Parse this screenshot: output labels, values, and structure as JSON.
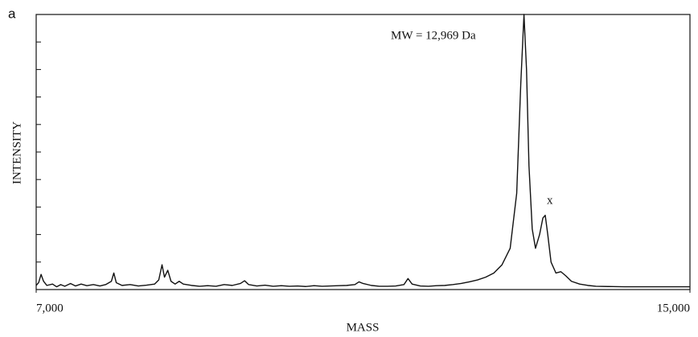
{
  "panel_label": "a",
  "chart_data": {
    "type": "line",
    "annotations": [
      "MW = 12,969 Da",
      "x"
    ],
    "xlabel": "MASS",
    "ylabel": "INTENSITY",
    "x": [
      7000,
      7030,
      7060,
      7090,
      7130,
      7200,
      7250,
      7300,
      7350,
      7420,
      7480,
      7550,
      7620,
      7700,
      7780,
      7850,
      7920,
      7950,
      7980,
      8050,
      8150,
      8250,
      8350,
      8450,
      8500,
      8540,
      8570,
      8610,
      8650,
      8700,
      8750,
      8800,
      8900,
      9000,
      9100,
      9200,
      9300,
      9400,
      9500,
      9550,
      9600,
      9700,
      9800,
      9900,
      10000,
      10100,
      10200,
      10300,
      10400,
      10500,
      10600,
      10700,
      10800,
      10900,
      10950,
      11000,
      11100,
      11200,
      11300,
      11400,
      11500,
      11550,
      11600,
      11700,
      11800,
      11900,
      12000,
      12100,
      12200,
      12300,
      12400,
      12500,
      12600,
      12700,
      12800,
      12880,
      12930,
      12969,
      13000,
      13030,
      13070,
      13110,
      13160,
      13200,
      13229,
      13260,
      13300,
      13360,
      13420,
      13480,
      13550,
      13650,
      13750,
      13850,
      14000,
      14200,
      14400,
      14600,
      14800,
      15000
    ],
    "series": [
      {
        "color": "#111111",
        "values": [
          1.5,
          2.5,
          5.5,
          3,
          1.5,
          2,
          1,
          1.8,
          1.2,
          2.2,
          1.3,
          2,
          1.4,
          1.8,
          1.3,
          1.8,
          3,
          6,
          2.5,
          1.5,
          1.8,
          1.3,
          1.6,
          2,
          3.5,
          9,
          4.5,
          7,
          3,
          2,
          3,
          2,
          1.5,
          1.2,
          1.4,
          1.2,
          1.8,
          1.5,
          2.2,
          3.2,
          1.8,
          1.3,
          1.6,
          1.2,
          1.4,
          1.2,
          1.3,
          1.1,
          1.4,
          1.2,
          1.3,
          1.4,
          1.5,
          1.8,
          2.8,
          2.2,
          1.5,
          1.2,
          1.2,
          1.3,
          1.8,
          4,
          2,
          1.3,
          1.2,
          1.4,
          1.5,
          1.8,
          2.2,
          2.8,
          3.5,
          4.5,
          6,
          9,
          15,
          35,
          75,
          100,
          80,
          45,
          22,
          15,
          20,
          26,
          27,
          20,
          10,
          6,
          6.5,
          5,
          3,
          2,
          1.5,
          1.2,
          1.1,
          1,
          1,
          1,
          1,
          1
        ]
      }
    ],
    "xlim": [
      7000,
      15000
    ],
    "ylim": [
      0,
      100
    ],
    "xticks": [
      {
        "value": 7000,
        "label": "7,000"
      },
      {
        "value": 15000,
        "label": "15,000"
      }
    ],
    "yticks": [
      0,
      10,
      20,
      30,
      40,
      50,
      60,
      70,
      80,
      90,
      100
    ]
  }
}
